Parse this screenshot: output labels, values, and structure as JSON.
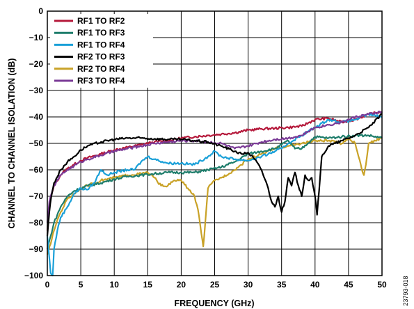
{
  "chart_data": {
    "type": "line",
    "xlabel": "FREQUENCY (GHz)",
    "ylabel": "CHANNEL TO CHANNEL ISOLATION (dB)",
    "xlim": [
      0,
      50
    ],
    "ylim": [
      -100,
      0
    ],
    "x_ticks": [
      "0",
      "5",
      "10",
      "15",
      "20",
      "25",
      "30",
      "35",
      "40",
      "45",
      "50"
    ],
    "y_ticks": [
      "0",
      "−10",
      "−20",
      "−30",
      "−40",
      "−50",
      "−60",
      "−70",
      "−80",
      "−90",
      "−100"
    ],
    "grid": true,
    "legend_position": "top-left",
    "figure_id": "23793-018",
    "series": [
      {
        "name": "RF1 TO RF2",
        "color": "#b5193b",
        "x": [
          0,
          0.3,
          1,
          2,
          3,
          4,
          5,
          6,
          8,
          10,
          12,
          14,
          16,
          18,
          20,
          22,
          24,
          26,
          28,
          30,
          32,
          34,
          36,
          38,
          40,
          42,
          44,
          46,
          48,
          50
        ],
        "y": [
          -83,
          -73,
          -66,
          -62,
          -59.5,
          -58,
          -56.5,
          -55.5,
          -54,
          -52.5,
          -51.5,
          -50.5,
          -49.5,
          -49,
          -48,
          -47.5,
          -47,
          -46.5,
          -46,
          -45,
          -44.5,
          -44.3,
          -44,
          -43.5,
          -41,
          -40.5,
          -42,
          -41,
          -39,
          -38
        ]
      },
      {
        "name": "RF1 TO RF3",
        "color": "#1e7d6b",
        "x": [
          0,
          0.5,
          1,
          2,
          3,
          4,
          5,
          6,
          8,
          10,
          12,
          14,
          16,
          18,
          20,
          22,
          24,
          26,
          28,
          30,
          32,
          34,
          36,
          37,
          38,
          40,
          42,
          44,
          46,
          48,
          50
        ],
        "y": [
          -90,
          -85,
          -80,
          -74,
          -70,
          -68,
          -67,
          -66,
          -65,
          -63.5,
          -62.5,
          -62,
          -61.5,
          -61,
          -61,
          -61,
          -60,
          -59,
          -57,
          -54,
          -53,
          -52,
          -49,
          -52,
          -52,
          -47.5,
          -48,
          -47.5,
          -47,
          -47,
          -48
        ]
      },
      {
        "name": "RF1 TO RF4",
        "color": "#1aa0d8",
        "x": [
          0,
          0.5,
          0.8,
          1,
          1.5,
          2,
          3,
          4,
          5,
          6,
          7,
          8,
          9,
          10,
          12,
          13,
          14,
          15,
          16,
          18,
          20,
          22,
          24,
          25,
          26,
          28,
          30,
          32,
          34,
          35,
          36,
          38,
          40,
          42,
          44,
          46,
          48,
          50
        ],
        "y": [
          -85,
          -99,
          -100,
          -90,
          -83,
          -78,
          -74,
          -69,
          -67,
          -67.5,
          -65,
          -60,
          -62,
          -61,
          -60,
          -60,
          -57,
          -55,
          -56,
          -57.5,
          -57.5,
          -58,
          -55,
          -53,
          -55,
          -56,
          -56.5,
          -55,
          -53,
          -52,
          -50,
          -47,
          -44,
          -41,
          -42,
          -41,
          -39,
          -40
        ]
      },
      {
        "name": "RF2 TO RF3",
        "color": "#000000",
        "x": [
          0,
          0.3,
          0.6,
          1,
          2,
          3,
          4,
          5,
          6,
          8,
          10,
          12,
          14,
          16,
          18,
          20,
          22,
          24,
          26,
          28,
          29,
          30,
          31,
          32,
          33,
          33.5,
          34,
          34.5,
          35,
          35.5,
          36,
          36.5,
          37,
          37.5,
          38,
          38.5,
          39,
          39.5,
          40,
          40.3,
          40.6,
          41,
          42,
          43,
          44,
          46,
          48,
          50
        ],
        "y": [
          -85,
          -76,
          -70,
          -65,
          -60,
          -57,
          -55,
          -52.5,
          -51,
          -49.5,
          -48.5,
          -48,
          -48,
          -48.3,
          -48.5,
          -48.5,
          -49,
          -49.5,
          -51,
          -53,
          -54,
          -53.5,
          -56,
          -60,
          -67,
          -72,
          -74,
          -70,
          -76,
          -72,
          -63,
          -66,
          -61,
          -66,
          -70,
          -62,
          -64,
          -63,
          -70,
          -77,
          -68,
          -55,
          -51,
          -50,
          -49,
          -47,
          -44,
          -39
        ]
      },
      {
        "name": "RF2 TO RF4",
        "color": "#c9a227",
        "x": [
          0,
          0.5,
          1,
          1.5,
          2,
          3,
          4,
          5,
          6,
          8,
          10,
          12,
          14,
          15,
          16,
          17,
          18,
          19,
          20,
          21,
          22,
          22.5,
          23,
          23.3,
          23.6,
          24,
          25,
          26,
          28,
          30,
          32,
          34,
          36,
          38,
          40,
          42,
          44,
          45,
          46,
          46.5,
          47,
          47.3,
          47.6,
          48,
          49,
          50
        ],
        "y": [
          -92,
          -88,
          -83,
          -79,
          -76,
          -71,
          -69,
          -67,
          -66,
          -64,
          -63,
          -62,
          -61.5,
          -61,
          -63,
          -66,
          -66,
          -64,
          -64,
          -67,
          -70,
          -75,
          -84,
          -89,
          -80,
          -67,
          -64,
          -63,
          -60,
          -56,
          -54,
          -52,
          -51,
          -50,
          -49,
          -49,
          -50,
          -48,
          -50,
          -55,
          -60,
          -62,
          -58,
          -50,
          -49,
          -48
        ]
      },
      {
        "name": "RF3 TO RF4",
        "color": "#7b3b97",
        "x": [
          0,
          0.3,
          1,
          2,
          3,
          4,
          5,
          6,
          8,
          10,
          12,
          14,
          16,
          18,
          20,
          22,
          24,
          26,
          28,
          30,
          32,
          34,
          36,
          38,
          40,
          42,
          44,
          46,
          48,
          50
        ],
        "y": [
          -80,
          -72,
          -66,
          -62,
          -60,
          -58.5,
          -57,
          -56,
          -54.5,
          -53,
          -52,
          -51,
          -50,
          -49.5,
          -49,
          -49,
          -49.5,
          -50,
          -52,
          -51,
          -49.5,
          -48.5,
          -48,
          -47,
          -44,
          -43,
          -42,
          -40,
          -39,
          -38
        ]
      }
    ]
  }
}
